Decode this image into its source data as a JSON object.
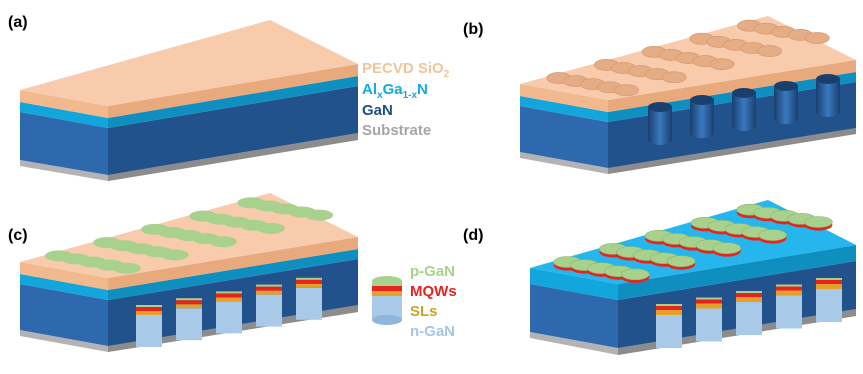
{
  "panels": {
    "a": {
      "label": "(a)"
    },
    "b": {
      "label": "(b)"
    },
    "c": {
      "label": "(c)"
    },
    "d": {
      "label": "(d)"
    }
  },
  "legend_layers": {
    "sio2": {
      "text": "PECVD SiO",
      "sub": "2",
      "color": "#f2c49a"
    },
    "algan": {
      "pre": "Al",
      "sub1": "x",
      "mid": "Ga",
      "sub2": "1-x",
      "post": "N",
      "color": "#13a9e1"
    },
    "gan": {
      "text": "GaN",
      "color": "#1f4e86"
    },
    "substrate": {
      "text": "Substrate",
      "color": "#a6a6a6"
    }
  },
  "legend_led": {
    "pgan": {
      "text": "p-GaN",
      "color": "#a9d18e"
    },
    "mqws": {
      "text": "MQWs",
      "color": "#e8231e"
    },
    "sls": {
      "text": "SLs",
      "color": "#c9a227"
    },
    "ngan": {
      "text": "n-GaN",
      "color": "#a3c6e6"
    }
  },
  "colors": {
    "sio2_top": "#f8cbad",
    "sio2_side": "#f2b98f",
    "algan": "#12a6dc",
    "algan_top": "#24b6ec",
    "gan_front": "#2e68ad",
    "gan_side": "#22528c",
    "substrate": "#b3b3b3",
    "substrate_side": "#8c8c8c",
    "pgan": "#a9d18e",
    "mqw": "#e8231e",
    "sls": "#e3a02a",
    "ngan": "#a9c9e8"
  }
}
